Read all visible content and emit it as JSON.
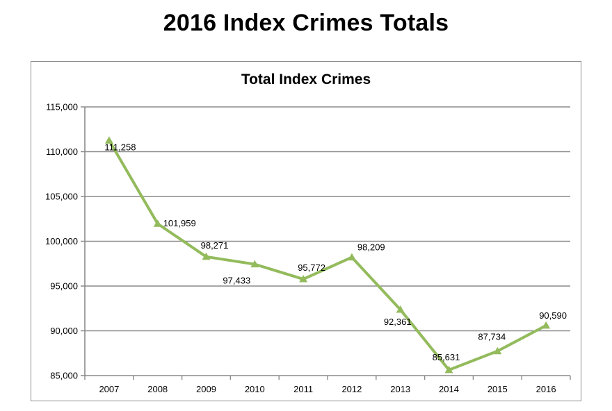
{
  "page": {
    "title": "2016 Index Crimes Totals"
  },
  "colors": {
    "line": "#93bb5c",
    "grid": "#8a8a8a",
    "axis": "#8a8a8a"
  },
  "chart_data": {
    "type": "line",
    "title": "Total Index Crimes",
    "xlabel": "",
    "ylabel": "",
    "categories": [
      "2007",
      "2008",
      "2009",
      "2010",
      "2011",
      "2012",
      "2013",
      "2014",
      "2015",
      "2016"
    ],
    "series": [
      {
        "values": [
          111258,
          101959,
          98271,
          97433,
          95772,
          98209,
          92361,
          85631,
          87734,
          90590
        ],
        "data_labels": [
          "111,258",
          "101,959",
          "98,271",
          "97,433",
          "95,772",
          "98,209",
          "92,361",
          "85,631",
          "87,734",
          "90,590"
        ],
        "marker": "triangle"
      }
    ],
    "ylim": [
      85000,
      115000
    ],
    "yticks": [
      85000,
      90000,
      95000,
      100000,
      105000,
      110000,
      115000
    ],
    "ytick_labels": [
      "85,000",
      "90,000",
      "95,000",
      "100,000",
      "105,000",
      "110,000",
      "115,000"
    ],
    "grid": true,
    "legend": "none"
  }
}
